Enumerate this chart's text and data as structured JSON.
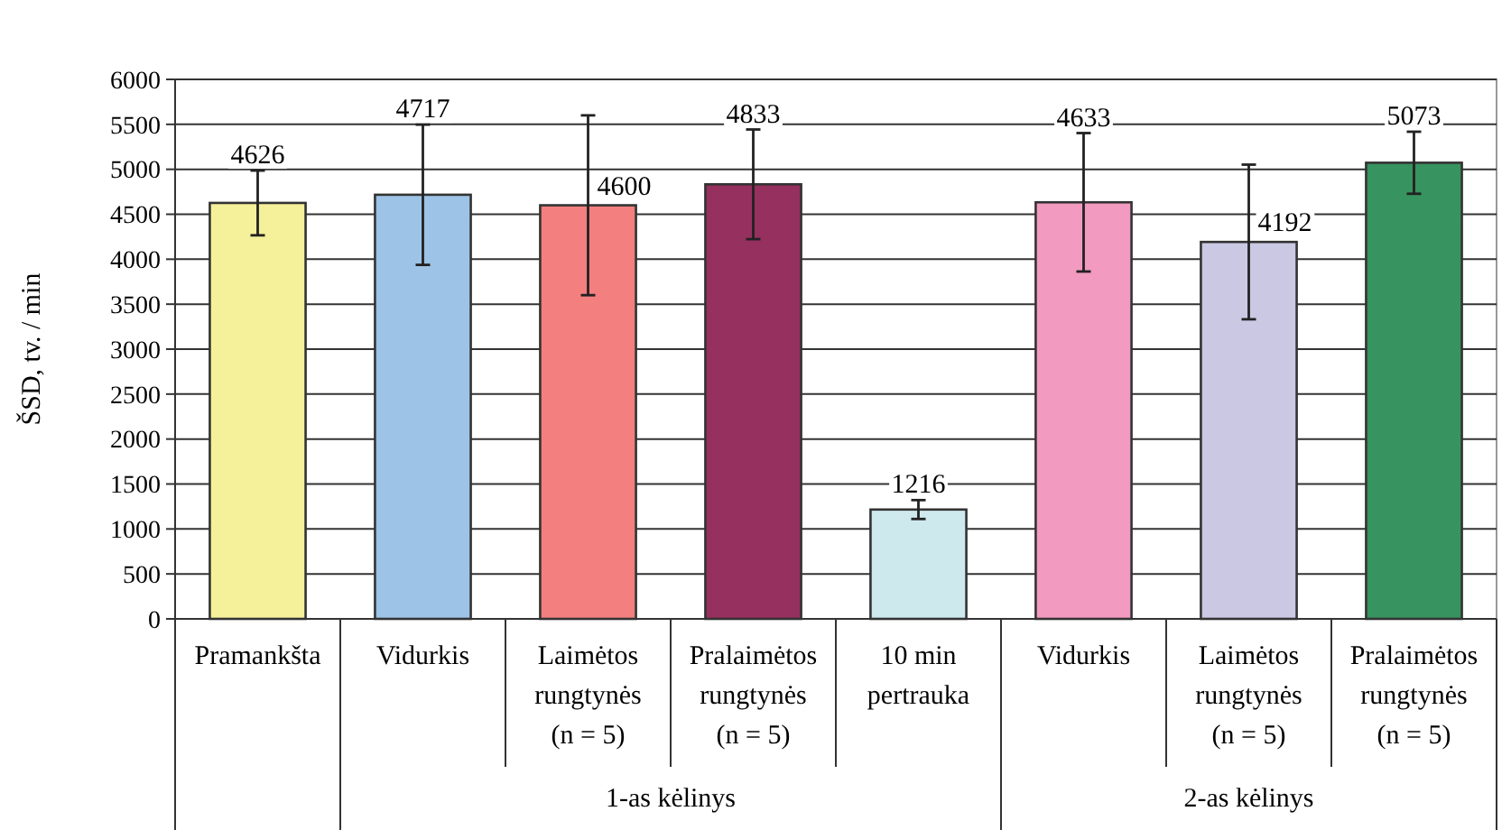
{
  "chart_data": {
    "type": "bar",
    "ylabel": "ŠSD, tv. / min",
    "categories": [
      "Pramankšta",
      "Vidurkis",
      "Laimėtos\nrungtynės\n(n = 5)",
      "Pralaimėtos\nrungtynės\n(n = 5)",
      "10 min\npertrauka",
      "Vidurkis",
      "Laimėtos\nrungtynės\n(n = 5)",
      "Pralaimėtos\nrungtynės\n(n = 5)"
    ],
    "values": [
      4626,
      4717,
      4600,
      4833,
      1216,
      4633,
      4192,
      5073
    ],
    "errors": [
      360,
      780,
      1000,
      610,
      105,
      770,
      860,
      345
    ],
    "colors": [
      "#f5f09a",
      "#9dc3e6",
      "#f47f7f",
      "#96305e",
      "#cde9ee",
      "#f29ac0",
      "#cbc8e4",
      "#37935f"
    ],
    "ylim": [
      0,
      6000
    ],
    "yticks": [
      0,
      500,
      1000,
      1500,
      2000,
      2500,
      3000,
      3500,
      4000,
      4500,
      5000,
      5500,
      6000
    ],
    "grid": "y",
    "data_labels": true,
    "annotations": [
      "1-as kėlinys",
      "2-as kėlinys"
    ]
  }
}
